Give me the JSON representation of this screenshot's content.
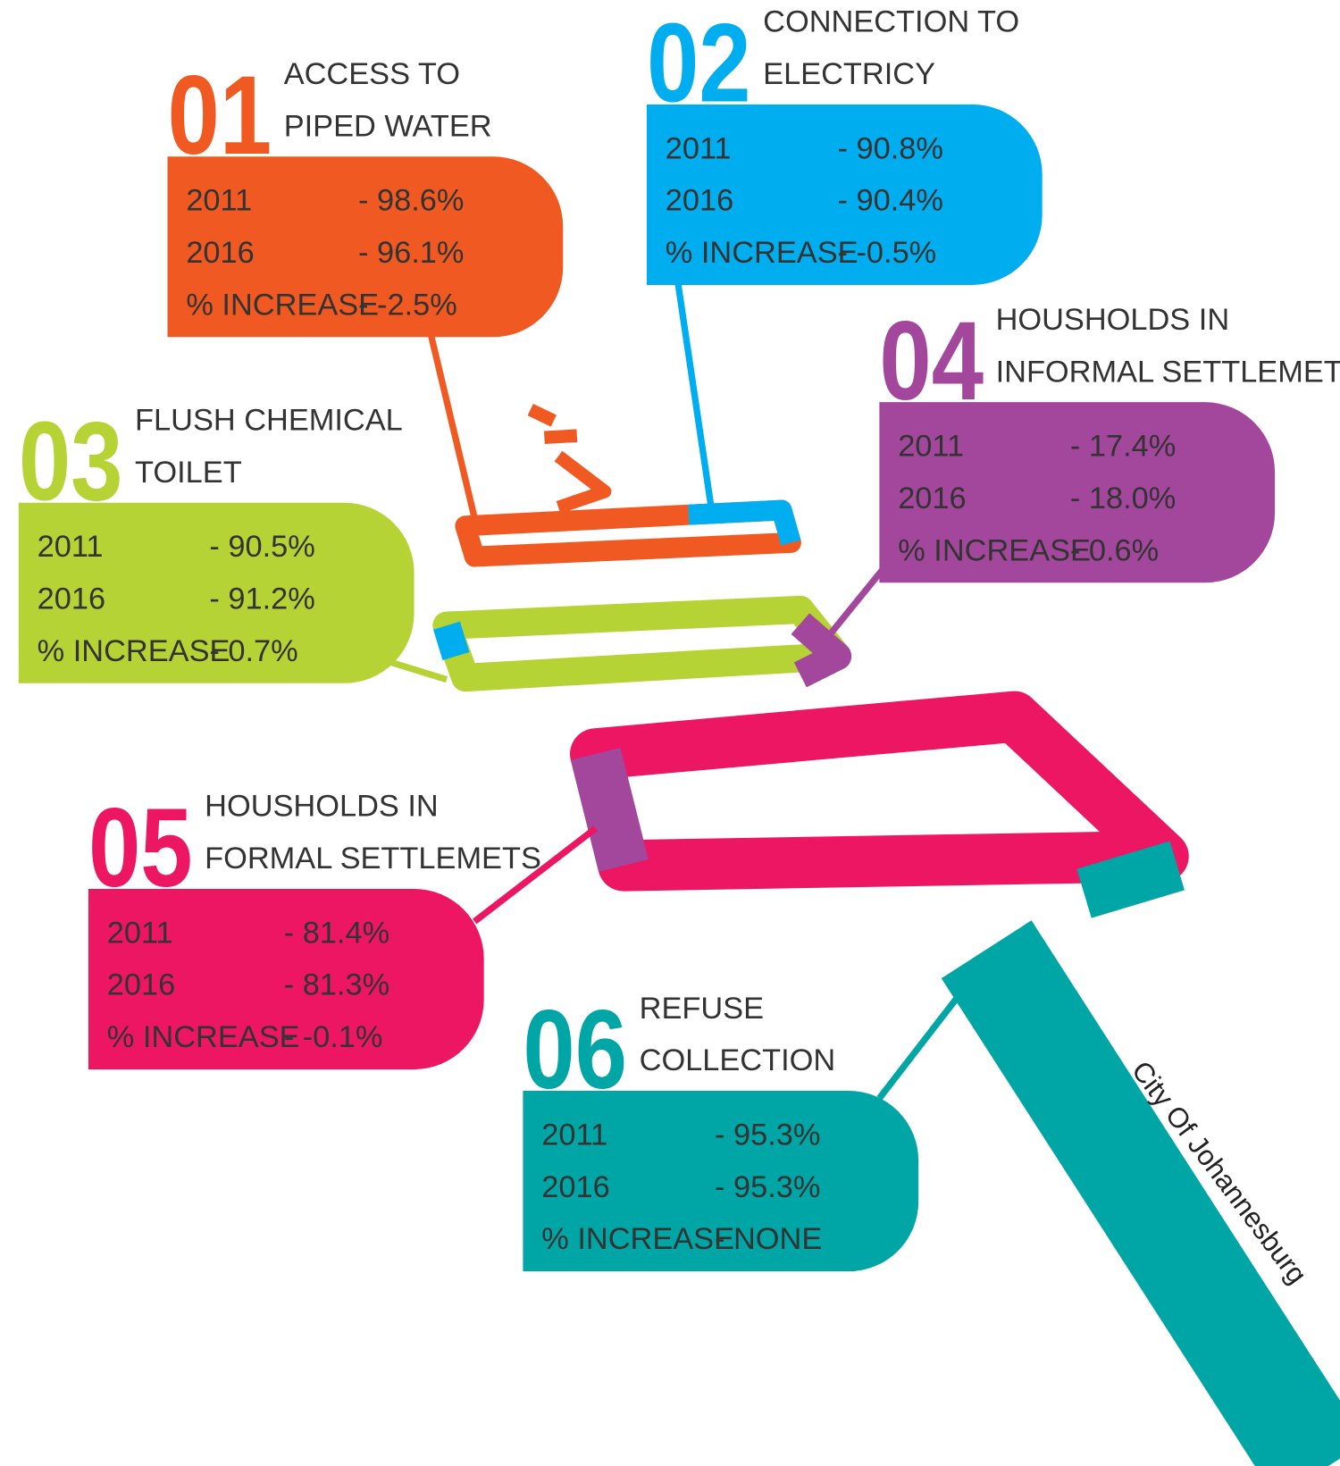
{
  "items": [
    {
      "number": "01",
      "title": [
        "ACCESS TO",
        "PIPED WATER"
      ],
      "rows": [
        [
          "2011",
          "- 98.6%"
        ],
        [
          "2016",
          "- 96.1%"
        ],
        [
          "% INCREASE",
          "- -2.5%"
        ]
      ]
    },
    {
      "number": "02",
      "title": [
        "CONNECTION TO",
        "ELECTRICY"
      ],
      "rows": [
        [
          "2011",
          "- 90.8%"
        ],
        [
          "2016",
          "- 90.4%"
        ],
        [
          "% INCREASE",
          "- -0.5%"
        ]
      ]
    },
    {
      "number": "03",
      "title": [
        "FLUSH CHEMICAL",
        "TOILET"
      ],
      "rows": [
        [
          "2011",
          "- 90.5%"
        ],
        [
          "2016",
          "- 91.2%"
        ],
        [
          "% INCREASE",
          "- 0.7%"
        ]
      ]
    },
    {
      "number": "04",
      "title": [
        "HOUSHOLDS IN",
        "INFORMAL SETTLEMETS"
      ],
      "rows": [
        [
          "2011",
          "- 17.4%"
        ],
        [
          "2016",
          "- 18.0%"
        ],
        [
          "% INCREASE",
          "- 0.6%"
        ]
      ]
    },
    {
      "number": "05",
      "title": [
        "HOUSHOLDS IN",
        "FORMAL SETTLEMETS"
      ],
      "rows": [
        [
          "2011",
          "- 81.4%"
        ],
        [
          "2016",
          "- 81.3%"
        ],
        [
          "% INCREASE",
          "- -0.1%"
        ]
      ]
    },
    {
      "number": "06",
      "title": [
        "REFUSE",
        "COLLECTION"
      ],
      "rows": [
        [
          "2011",
          "- 95.3%"
        ],
        [
          "2016",
          "- 95.3%"
        ],
        [
          "% INCREASE",
          "- NONE"
        ]
      ]
    }
  ],
  "footer": "City Of Johannesburg"
}
